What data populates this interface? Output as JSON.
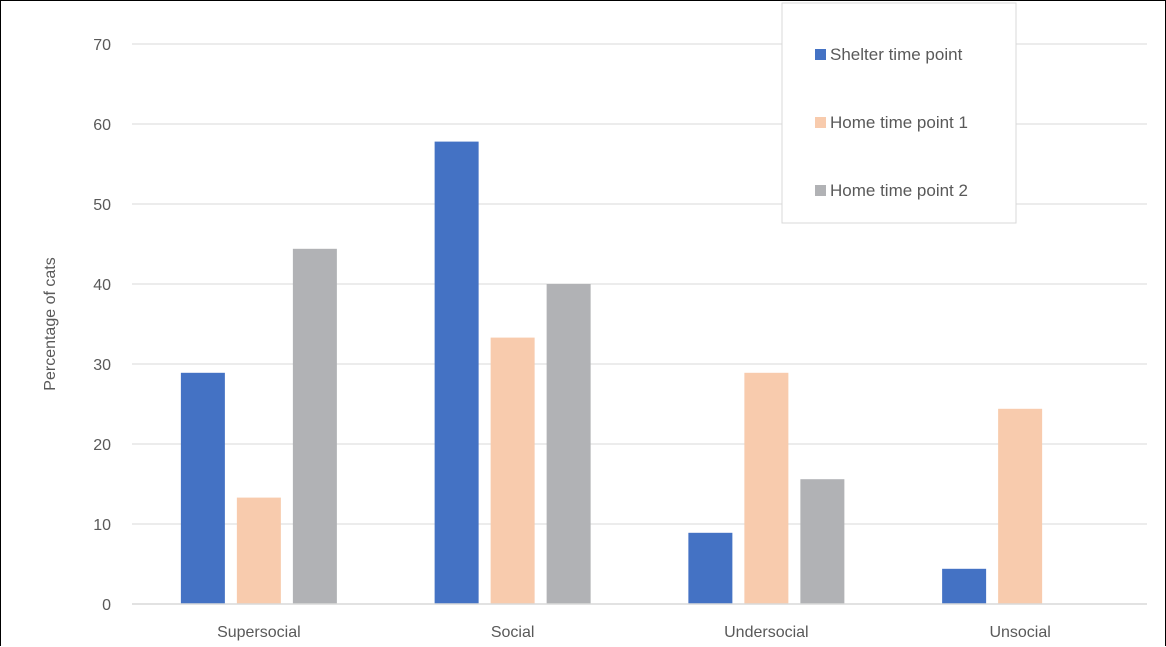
{
  "chart_data": {
    "type": "bar",
    "title": "",
    "xlabel": "",
    "ylabel": "Percentage of cats",
    "categories": [
      "Supersocial",
      "Social",
      "Undersocial",
      "Unsocial"
    ],
    "series": [
      {
        "name": "Shelter time point",
        "color": "#4472C4",
        "values": [
          28.9,
          57.8,
          8.9,
          4.4
        ]
      },
      {
        "name": "Home time point 1",
        "color": "#F8CBAD",
        "values": [
          13.3,
          33.3,
          28.9,
          24.4
        ]
      },
      {
        "name": "Home time point 2",
        "color": "#B1B2B5",
        "values": [
          44.4,
          40.0,
          15.6,
          0
        ]
      }
    ],
    "ylim": [
      0,
      70
    ],
    "yticks": [
      "0",
      "10",
      "20",
      "30",
      "40",
      "50",
      "60",
      "70"
    ],
    "grid": true,
    "legend_position": "top-right"
  }
}
